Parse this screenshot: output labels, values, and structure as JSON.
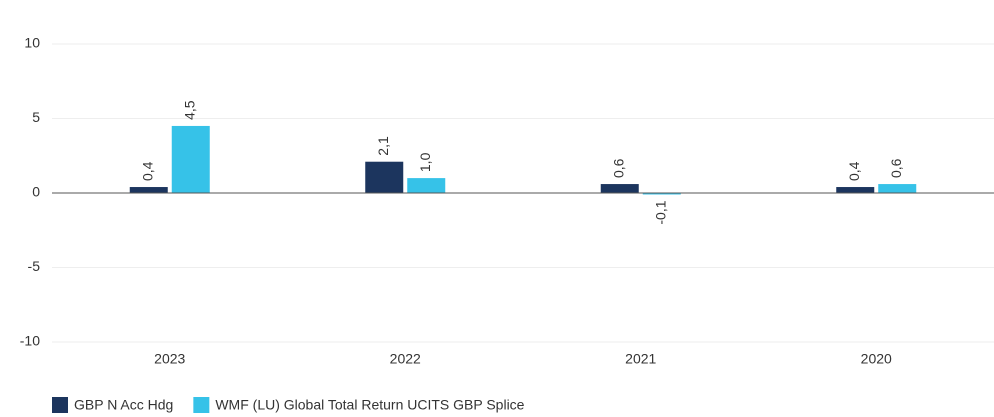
{
  "chart_data": {
    "type": "bar",
    "categories": [
      "2023",
      "2022",
      "2021",
      "2020"
    ],
    "series": [
      {
        "name": "GBP N Acc Hdg",
        "color": "#1c355e",
        "values": [
          0.4,
          2.1,
          0.6,
          0.4
        ],
        "value_labels": [
          "0,4",
          "2,1",
          "0,6",
          "0,4"
        ]
      },
      {
        "name": "WMF (LU) Global Total Return UCITS GBP Splice",
        "color": "#36c2e8",
        "values": [
          4.5,
          1.0,
          -0.1,
          0.6
        ],
        "value_labels": [
          "4,5",
          "1,0",
          "-0,1",
          "0,6"
        ]
      }
    ],
    "ylim": [
      -10,
      10
    ],
    "yticks": [
      10,
      5,
      0,
      -5,
      -10
    ],
    "grid": true,
    "legend": "bottom"
  }
}
